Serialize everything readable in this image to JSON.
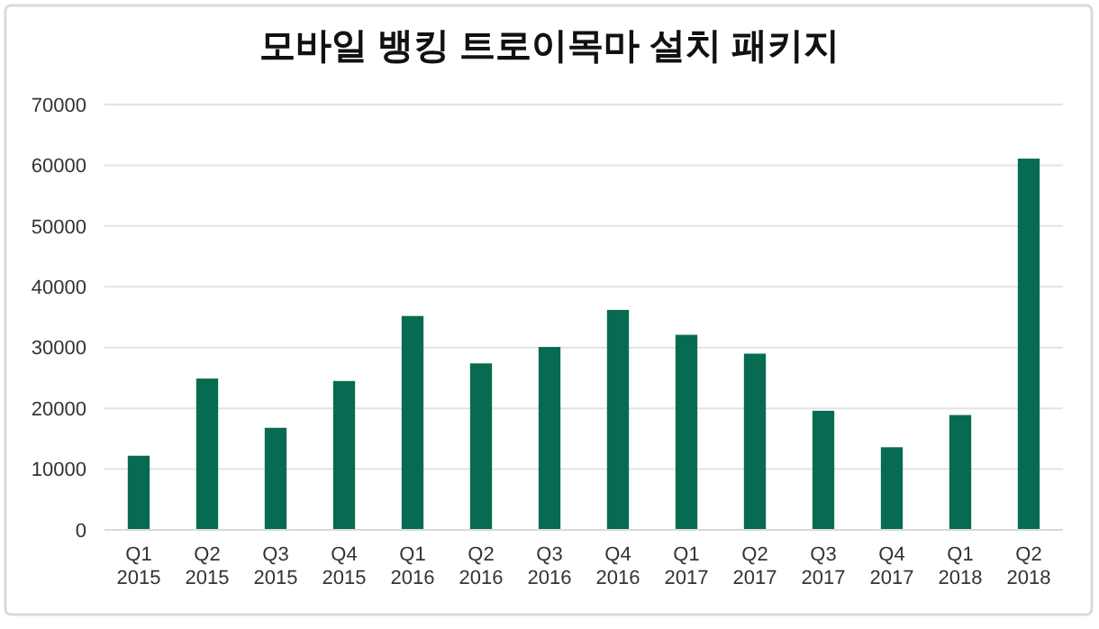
{
  "chart_data": {
    "type": "bar",
    "title": "모바일 뱅킹 트로이목마 설치 패키지",
    "categories": [
      "Q1\n2015",
      "Q2\n2015",
      "Q3\n2015",
      "Q4\n2015",
      "Q1\n2016",
      "Q2\n2016",
      "Q3\n2016",
      "Q4\n2016",
      "Q1\n2017",
      "Q2\n2017",
      "Q3\n2017",
      "Q4\n2017",
      "Q1\n2018",
      "Q2\n2018"
    ],
    "values": [
      12200,
      24900,
      16800,
      24500,
      35200,
      27400,
      30100,
      36200,
      32100,
      29000,
      19600,
      13600,
      18900,
      61100
    ],
    "color": "#076b52",
    "ylim": [
      0,
      70000
    ],
    "yticks": [
      0,
      10000,
      20000,
      30000,
      40000,
      50000,
      60000,
      70000
    ],
    "grid": "y"
  }
}
